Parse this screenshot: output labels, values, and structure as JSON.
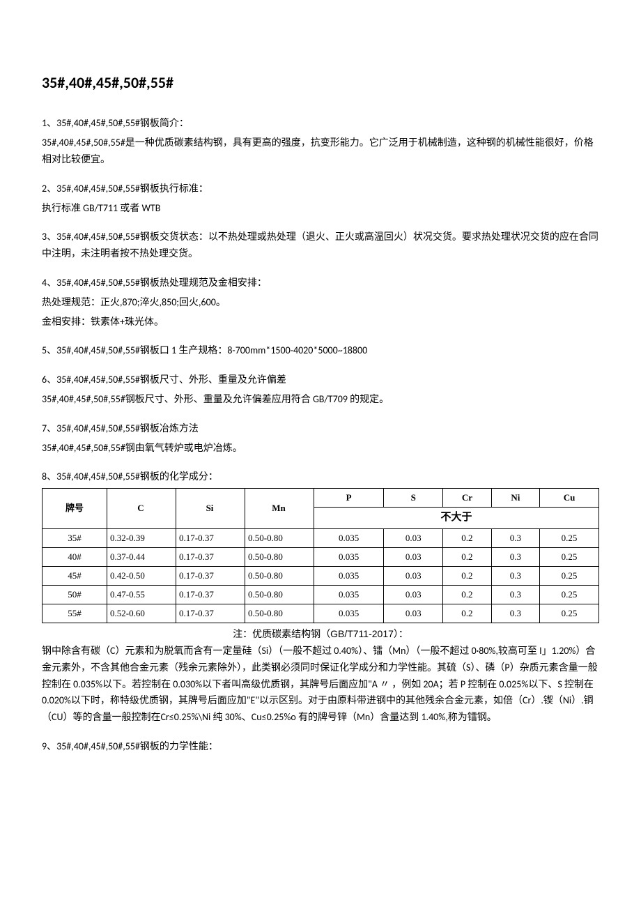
{
  "title": "35#,40#,45#,50#,55#",
  "sections": {
    "s1_h": "1、35#,40#,45#,50#,55#钢板简介：",
    "s1_b": "35#,40#,45#,50#,55#是一种优质碳素结构钢，具有更高的强度，抗变形能力。它广泛用于机械制造，这种钢的机械性能很好，价格相对比较便宜。",
    "s2_h": "2、35#,40#,45#,50#,55#钢板执行标准：",
    "s2_b": "执行标准 GB/T711 或者 WTB",
    "s3_h_b": "3、35#,40#,45#,50#,55#钢板交货状态：以不热处理或热处理（退火、正火或高温回火）状况交货。要求热处理状况交货的应在合同中注明，未注明者按不热处理交货。",
    "s4_h": "4、35#,40#,45#,50#,55#钢板热处理规范及金相安排：",
    "s4_b1": "热处理规范：正火,870;淬火,850;回火,600。",
    "s4_b2": "金相安排：铁素体+珠光体。",
    "s5": "5、35#,40#,45#,50#,55#钢板口 1 生产规格：8-700mm*1500-4020*5000~18800",
    "s6_h": "6、35#,40#,45#,50#,55#钢板尺寸、外形、重量及允许偏差",
    "s6_b": "35#,40#,45#,50#,55#钢板尺寸、外形、重量及允许偏差应用符合 GB/T709 的规定。",
    "s7_h": "7、35#,40#,45#,50#,55#钢板冶炼方法",
    "s7_b": "35#,40#,45#,50#,55#钢由氧气转炉或电炉冶炼。",
    "s8_h": "8、35#,40#,45#,50#,55#钢板的化学成分：",
    "s9_h": "9、35#,40#,45#,50#,55#钢板的力学性能："
  },
  "table": {
    "headers": {
      "grade": "牌号",
      "c": "C",
      "si": "Si",
      "mn": "Mn",
      "p": "P",
      "s": "S",
      "cr": "Cr",
      "ni": "Ni",
      "cu": "Cu",
      "nmt": "不大于"
    },
    "rows": [
      {
        "grade": "35#",
        "c": "0.32-0.39",
        "si": "0.17-0.37",
        "mn": "0.50-0.80",
        "p": "0.035",
        "s": "0.03",
        "cr": "0.2",
        "ni": "0.3",
        "cu": "0.25"
      },
      {
        "grade": "40#",
        "c": "0.37-0.44",
        "si": "0.17-0.37",
        "mn": "0.50-0.80",
        "p": "0.035",
        "s": "0.03",
        "cr": "0.2",
        "ni": "0.3",
        "cu": "0.25"
      },
      {
        "grade": "45#",
        "c": "0.42-0.50",
        "si": "0.17-0.37",
        "mn": "0.50-0.80",
        "p": "0.035",
        "s": "0.03",
        "cr": "0.2",
        "ni": "0.3",
        "cu": "0.25"
      },
      {
        "grade": "50#",
        "c": "0.47-0.55",
        "si": "0.17-0.37",
        "mn": "0.50-0.80",
        "p": "0.035",
        "s": "0.03",
        "cr": "0.2",
        "ni": "0.3",
        "cu": "0.25"
      },
      {
        "grade": "55#",
        "c": "0.52-0.60",
        "si": "0.17-0.37",
        "mn": "0.50-0.80",
        "p": "0.035",
        "s": "0.03",
        "cr": "0.2",
        "ni": "0.3",
        "cu": "0.25"
      }
    ],
    "note": "注：优质碳素结构钢（GB/T711-2017）：",
    "note_body": "钢中除含有碳（C）元素和为脱氧而含有一定量硅（Si）（一般不超过 0.40%）、镭（Mn）（一般不超过 0·80%,较高可至 I」1.20%）合金元素外，不含其他合金元素（残余元素除外），此类钢必须同时保证化学成分和力学性能。其硫（S）、磷（P）杂质元素含量一般控制在 0.035%以下。若控制在 0.030%以下者叫高级优质钢，其牌号后面应加\"A 〃 ，例如 20A；若 P 控制在 0.025%以下、S 控制在 0.020%以下时，称特级优质钢，其牌号后面应加\"E\"以示区别。对于由原料带进钢中的其他残余合金元素，如倍（Cr）.锲（Ni）.铜（CU）等的含量一般控制在Cr≤0.25%\\Ni 纯 30%、Cu≤0.25%o 有的牌号锌（Mn）含量达到 1.40%,称为镭钢。"
  }
}
